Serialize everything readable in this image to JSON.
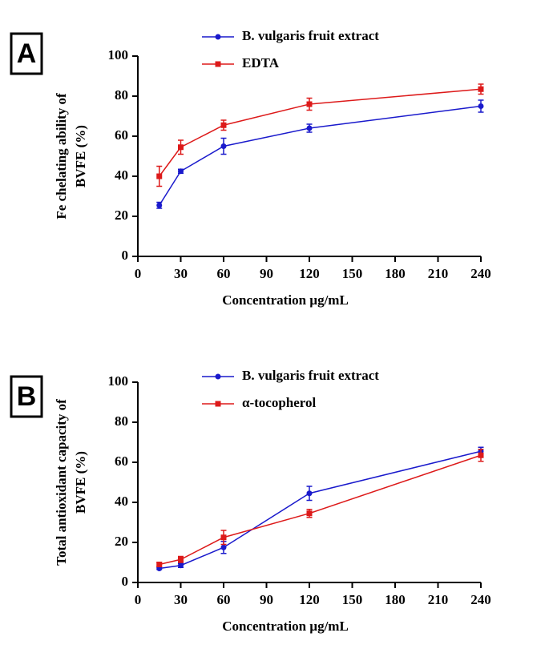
{
  "chart_data": [
    {
      "type": "line",
      "panel_label": "A",
      "ylabel": [
        "Fe chelating ability of",
        "BVFE (%)"
      ],
      "xlabel": "Concentration µg/mL",
      "x": [
        15,
        30,
        60,
        120,
        240
      ],
      "series": [
        {
          "name": "B. vulgaris fruit extract",
          "color": "#1a1acc",
          "marker": "circle",
          "values": [
            25.5,
            42.5,
            55,
            64,
            75
          ],
          "errors": [
            1.5,
            1,
            4,
            2,
            3
          ]
        },
        {
          "name": "EDTA",
          "color": "#dd1a1a",
          "marker": "square",
          "values": [
            40,
            54.5,
            65.5,
            76,
            83.5
          ],
          "errors": [
            5,
            3.5,
            2.5,
            3,
            2.5
          ]
        }
      ],
      "xlim": [
        0,
        240
      ],
      "xticks": [
        0,
        30,
        60,
        90,
        120,
        150,
        180,
        210,
        240
      ],
      "ylim": [
        0,
        100
      ],
      "yticks": [
        0,
        20,
        40,
        60,
        80,
        100
      ]
    },
    {
      "type": "line",
      "panel_label": "B",
      "ylabel": [
        "Total antioxidant capacity of",
        "BVFE (%)"
      ],
      "xlabel": "Concentration µg/mL",
      "x": [
        15,
        30,
        60,
        120,
        240
      ],
      "series": [
        {
          "name": "B. vulgaris fruit extract",
          "color": "#1a1acc",
          "marker": "circle",
          "values": [
            7,
            8.5,
            17.5,
            44.5,
            65.5
          ],
          "errors": [
            0.5,
            1,
            3,
            3.5,
            2
          ]
        },
        {
          "name": "α-tocopherol",
          "color": "#dd1a1a",
          "marker": "square",
          "values": [
            9,
            11.5,
            22.5,
            34.5,
            63.5
          ],
          "errors": [
            1,
            1.5,
            3.5,
            2,
            3
          ]
        }
      ],
      "xlim": [
        0,
        240
      ],
      "xticks": [
        0,
        30,
        60,
        90,
        120,
        150,
        180,
        210,
        240
      ],
      "ylim": [
        0,
        100
      ],
      "yticks": [
        0,
        20,
        40,
        60,
        80,
        100
      ]
    }
  ]
}
